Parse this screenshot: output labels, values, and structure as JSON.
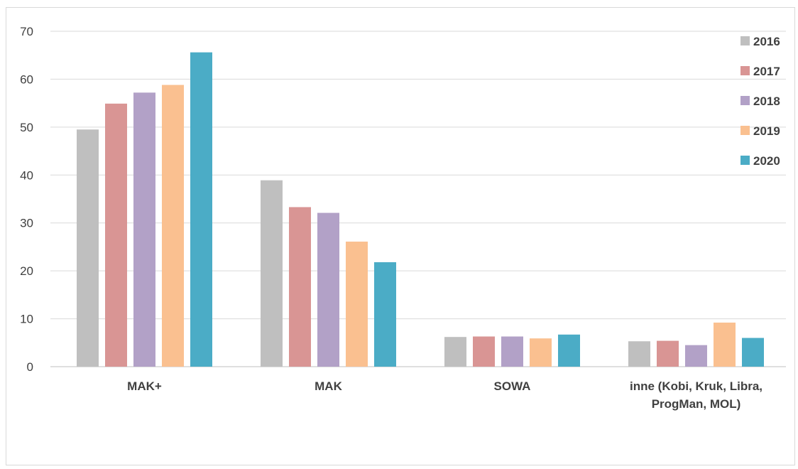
{
  "chart_data": {
    "type": "bar",
    "title": "",
    "xlabel": "",
    "ylabel": "",
    "ylim": [
      0,
      70
    ],
    "yticks": [
      0,
      10,
      20,
      30,
      40,
      50,
      60,
      70
    ],
    "grid": true,
    "legend_position": "top-right",
    "categories": [
      [
        "MAK+"
      ],
      [
        "MAK"
      ],
      [
        "SOWA"
      ],
      [
        "inne (Kobi, Kruk, Libra,",
        "ProgMan, MOL)"
      ]
    ],
    "series": [
      {
        "name": "2016",
        "color": "#bfbfbf",
        "values": [
          49.5,
          38.9,
          6.2,
          5.3
        ]
      },
      {
        "name": "2017",
        "color": "#d99594",
        "values": [
          54.9,
          33.3,
          6.3,
          5.4
        ]
      },
      {
        "name": "2018",
        "color": "#b2a1c7",
        "values": [
          57.2,
          32.1,
          6.3,
          4.5
        ]
      },
      {
        "name": "2019",
        "color": "#fac090",
        "values": [
          58.8,
          26.1,
          5.9,
          9.2
        ]
      },
      {
        "name": "2020",
        "color": "#4bacc6",
        "values": [
          65.6,
          21.8,
          6.7,
          6.0
        ]
      }
    ]
  }
}
